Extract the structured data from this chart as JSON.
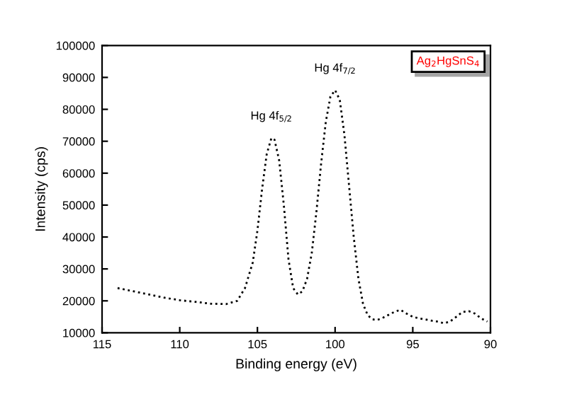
{
  "chart_data": {
    "type": "line",
    "xlabel": "Binding energy (eV)",
    "ylabel": "Intensity (cps)",
    "xlim": [
      115,
      90
    ],
    "xticks": [
      115,
      110,
      105,
      100,
      95,
      90
    ],
    "ylim": [
      10000,
      100000
    ],
    "yticks": [
      10000,
      20000,
      30000,
      40000,
      50000,
      60000,
      70000,
      80000,
      90000,
      100000
    ],
    "grid": false,
    "legend": "top right",
    "line_style": "dotted",
    "marker": "none",
    "annotations": [
      {
        "text": "Hg 4f$_{5/2}$",
        "x": 104.1,
        "y": 71000
      },
      {
        "text": "Hg 4f$_{7/2}$",
        "x": 100.0,
        "y": 86000
      }
    ],
    "series": [
      {
        "name": "Ag$_{2}$HgSnS$_{4}$",
        "color": "#000000",
        "x": [
          114.0,
          113,
          112,
          111,
          110,
          109,
          108,
          107,
          106.3,
          105.8,
          105.3,
          105,
          104.7,
          104.4,
          104.1,
          103.9,
          103.6,
          103.3,
          103,
          102.7,
          102.4,
          102.1,
          101.8,
          101.5,
          101.2,
          100.9,
          100.6,
          100.3,
          100.0,
          99.7,
          99.4,
          99.1,
          98.8,
          98.5,
          98.2,
          97.9,
          97.6,
          97.3,
          97.0,
          96.6,
          96.2,
          95.8,
          95.4,
          95.0,
          94.6,
          94.2,
          93.8,
          93.4,
          93.0,
          92.6,
          92.2,
          91.8,
          91.4,
          91.0,
          90.6,
          90.2
        ],
        "values": [
          24000,
          23000,
          22000,
          21000,
          20200,
          19700,
          19100,
          19000,
          20000,
          24000,
          32000,
          42000,
          55000,
          66000,
          71000,
          70500,
          64000,
          50000,
          33000,
          24000,
          22000,
          23000,
          27000,
          35000,
          48000,
          63000,
          76000,
          84000,
          86000,
          83000,
          72000,
          56000,
          40000,
          27000,
          19000,
          15500,
          14200,
          14000,
          14500,
          15500,
          16500,
          17200,
          16000,
          15000,
          14500,
          14200,
          13800,
          13500,
          13000,
          13500,
          15000,
          16500,
          16800,
          16000,
          14500,
          13500
        ]
      }
    ]
  }
}
